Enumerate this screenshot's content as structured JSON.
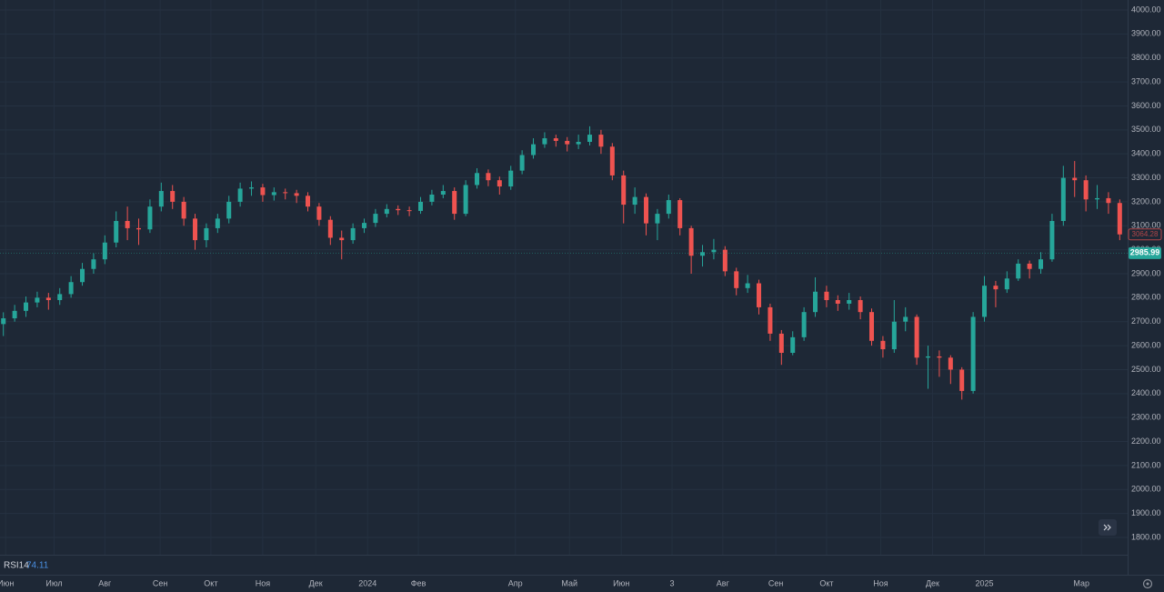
{
  "chart_data": {
    "type": "candlestick",
    "open": [
      2690,
      2714,
      2745,
      2780,
      2800,
      2790,
      2815,
      2865,
      2920,
      2960,
      3030,
      3120,
      3090,
      3085,
      3180,
      3245,
      3200,
      3130,
      3040,
      3090,
      3130,
      3200,
      3255,
      3260,
      3228,
      3240,
      3236,
      3225,
      3180,
      3125,
      3050,
      3040,
      3090,
      3112,
      3150,
      3170,
      3165,
      3162,
      3200,
      3230,
      3245,
      3150,
      3270,
      3320,
      3290,
      3264,
      3330,
      3395,
      3440,
      3465,
      3454,
      3440,
      3450,
      3480,
      3430,
      3310,
      3188,
      3220,
      3110,
      3150,
      3207,
      3090,
      2975,
      2990,
      3000,
      2910,
      2840,
      2860,
      2760,
      2650,
      2570,
      2635,
      2740,
      2825,
      2790,
      2775,
      2790,
      2740,
      2620,
      2585,
      2700,
      2720,
      2550,
      2555,
      2550,
      2500,
      2411,
      2720,
      2850,
      2835,
      2880,
      2942,
      2920,
      2960,
      3120,
      3300,
      3290,
      3210,
      3215,
      3195
    ],
    "high": [
      2739,
      2770,
      2805,
      2825,
      2820,
      2840,
      2890,
      2945,
      2985,
      3060,
      3160,
      3180,
      3130,
      3210,
      3280,
      3270,
      3220,
      3150,
      3110,
      3150,
      3225,
      3280,
      3285,
      3275,
      3260,
      3255,
      3250,
      3240,
      3195,
      3140,
      3080,
      3110,
      3130,
      3170,
      3190,
      3185,
      3180,
      3220,
      3250,
      3270,
      3260,
      3290,
      3340,
      3335,
      3305,
      3350,
      3415,
      3465,
      3490,
      3480,
      3470,
      3480,
      3515,
      3500,
      3445,
      3330,
      3260,
      3235,
      3170,
      3230,
      3215,
      3100,
      3020,
      3045,
      3015,
      2925,
      2895,
      2875,
      2775,
      2665,
      2660,
      2760,
      2885,
      2850,
      2810,
      2820,
      2805,
      2755,
      2640,
      2790,
      2760,
      2730,
      2600,
      2580,
      2560,
      2510,
      2740,
      2890,
      2870,
      2910,
      2960,
      2955,
      2990,
      3150,
      3350,
      3370,
      3310,
      3270,
      3240,
      3210
    ],
    "low": [
      2640,
      2700,
      2720,
      2760,
      2750,
      2770,
      2800,
      2850,
      2900,
      2940,
      3010,
      3040,
      3020,
      3070,
      3160,
      3170,
      3100,
      3000,
      3010,
      3070,
      3110,
      3180,
      3225,
      3200,
      3205,
      3210,
      3195,
      3160,
      3100,
      3020,
      2960,
      3025,
      3070,
      3095,
      3135,
      3145,
      3140,
      3150,
      3185,
      3215,
      3125,
      3140,
      3255,
      3265,
      3230,
      3250,
      3315,
      3380,
      3425,
      3430,
      3410,
      3420,
      3435,
      3400,
      3290,
      3110,
      3150,
      3060,
      3040,
      3130,
      3060,
      2900,
      2930,
      2960,
      2890,
      2810,
      2820,
      2730,
      2620,
      2520,
      2560,
      2620,
      2720,
      2760,
      2745,
      2750,
      2710,
      2600,
      2550,
      2570,
      2660,
      2520,
      2420,
      2470,
      2440,
      2375,
      2400,
      2700,
      2760,
      2820,
      2870,
      2880,
      2900,
      2950,
      3100,
      3220,
      3160,
      3170,
      3150,
      3040
    ],
    "close": [
      2714,
      2745,
      2780,
      2800,
      2790,
      2815,
      2865,
      2920,
      2960,
      3030,
      3120,
      3090,
      3085,
      3180,
      3245,
      3200,
      3130,
      3040,
      3090,
      3130,
      3200,
      3255,
      3260,
      3228,
      3240,
      3236,
      3225,
      3180,
      3125,
      3050,
      3040,
      3090,
      3112,
      3150,
      3170,
      3165,
      3162,
      3200,
      3230,
      3245,
      3150,
      3270,
      3320,
      3290,
      3264,
      3330,
      3395,
      3440,
      3465,
      3454,
      3440,
      3450,
      3480,
      3430,
      3310,
      3188,
      3220,
      3110,
      3150,
      3207,
      3090,
      2975,
      2990,
      3000,
      2910,
      2840,
      2860,
      2760,
      2650,
      2570,
      2635,
      2740,
      2825,
      2790,
      2775,
      2790,
      2740,
      2620,
      2585,
      2700,
      2720,
      2550,
      2555,
      2550,
      2500,
      2411,
      2720,
      2850,
      2835,
      2880,
      2942,
      2920,
      2960,
      3120,
      3300,
      3290,
      3210,
      3215,
      3195,
      3064
    ],
    "colors": {
      "up": "#26a69a",
      "down": "#ef5350"
    },
    "ylim": [
      1800,
      4000
    ],
    "yticks": [
      {
        "value": 1800,
        "label": "1800.00"
      },
      {
        "value": 1900,
        "label": "1900.00"
      },
      {
        "value": 2000,
        "label": "2000.00"
      },
      {
        "value": 2100,
        "label": "2100.00"
      },
      {
        "value": 2200,
        "label": "2200.00"
      },
      {
        "value": 2300,
        "label": "2300.00"
      },
      {
        "value": 2400,
        "label": "2400.00"
      },
      {
        "value": 2500,
        "label": "2500.00"
      },
      {
        "value": 2600,
        "label": "2600.00"
      },
      {
        "value": 2700,
        "label": "2700.00"
      },
      {
        "value": 2800,
        "label": "2800.00"
      },
      {
        "value": 2900,
        "label": "2900.00"
      },
      {
        "value": 3000,
        "label": "3000.00"
      },
      {
        "value": 3100,
        "label": "3100.00"
      },
      {
        "value": 3200,
        "label": "3200.00"
      },
      {
        "value": 3300,
        "label": "3300.00"
      },
      {
        "value": 3400,
        "label": "3400.00"
      },
      {
        "value": 3500,
        "label": "3500.00"
      },
      {
        "value": 3600,
        "label": "3600.00"
      },
      {
        "value": 3700,
        "label": "3700.00"
      },
      {
        "value": 3800,
        "label": "3800.00"
      },
      {
        "value": 3900,
        "label": "3900.00"
      },
      {
        "value": 4000,
        "label": "4000.00"
      }
    ],
    "xlim": [
      -0.3,
      99.7
    ],
    "xticks": [
      {
        "value": 0.2,
        "label": "Июн"
      },
      {
        "value": 4.5,
        "label": "Июл"
      },
      {
        "value": 9,
        "label": "Авг"
      },
      {
        "value": 13.9,
        "label": "Сен"
      },
      {
        "value": 18.4,
        "label": "Окт"
      },
      {
        "value": 23,
        "label": "Ноя"
      },
      {
        "value": 27.7,
        "label": "Дек"
      },
      {
        "value": 32.3,
        "label": "2024"
      },
      {
        "value": 36.8,
        "label": "Фев"
      },
      {
        "value": 45.4,
        "label": "Апр"
      },
      {
        "value": 50.2,
        "label": "Май"
      },
      {
        "value": 54.8,
        "label": "Июн"
      },
      {
        "value": 59.3,
        "label": "3"
      },
      {
        "value": 63.8,
        "label": "Авг"
      },
      {
        "value": 68.5,
        "label": "Сен"
      },
      {
        "value": 73,
        "label": "Окт"
      },
      {
        "value": 77.8,
        "label": "Ноя"
      },
      {
        "value": 82.4,
        "label": "Дек"
      },
      {
        "value": 87,
        "label": "2025"
      },
      {
        "value": 95.6,
        "label": "Мар"
      }
    ],
    "price_line": 2985.99,
    "last_close": 3064.28,
    "indicator": {
      "name": "RSI14",
      "value": 74.11
    },
    "grid": true
  }
}
